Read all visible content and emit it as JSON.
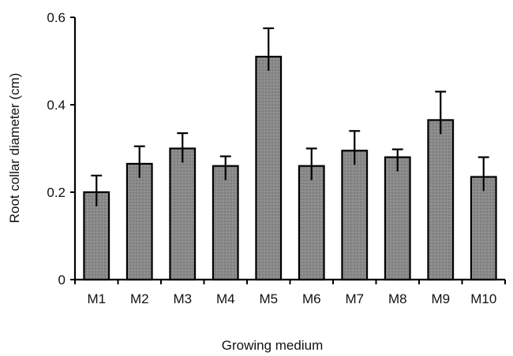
{
  "chart_data": {
    "type": "bar",
    "title": "",
    "xlabel": "Growing medium",
    "ylabel": "Root collar diameter (cm)",
    "categories": [
      "M1",
      "M2",
      "M3",
      "M4",
      "M5",
      "M6",
      "M7",
      "M8",
      "M9",
      "M10"
    ],
    "values": [
      0.2,
      0.265,
      0.3,
      0.26,
      0.51,
      0.26,
      0.295,
      0.28,
      0.365,
      0.235
    ],
    "error": [
      0.038,
      0.04,
      0.035,
      0.022,
      0.065,
      0.04,
      0.045,
      0.018,
      0.065,
      0.045
    ],
    "ylim": [
      0,
      0.6
    ],
    "yticks": [
      "0",
      "0.2",
      "0.4",
      "0.6"
    ],
    "bar_color": "#8a8a8a",
    "grid": false,
    "error_bars": "top-only"
  }
}
